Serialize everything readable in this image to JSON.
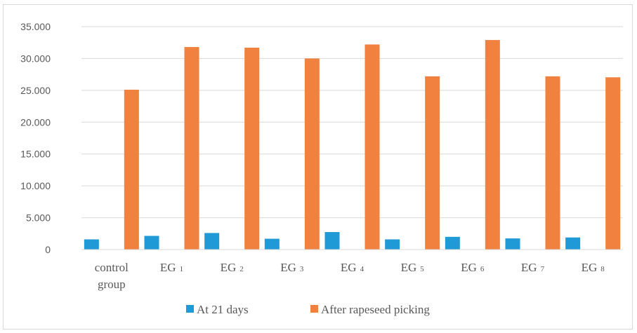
{
  "chart_data": {
    "type": "bar",
    "title": "",
    "xlabel": "",
    "ylabel": "",
    "ylim": [
      0,
      35000
    ],
    "yticks": [
      0,
      5000,
      10000,
      15000,
      20000,
      25000,
      30000,
      35000
    ],
    "ytick_labels": [
      "0",
      "5.000",
      "10.000",
      "15.000",
      "20.000",
      "25.000",
      "30.000",
      "35.000"
    ],
    "grid": true,
    "legend_position": "bottom",
    "categories": [
      {
        "main": "control",
        "sub": "",
        "line2": "group"
      },
      {
        "main": "EG",
        "sub": "1",
        "line2": ""
      },
      {
        "main": "EG",
        "sub": "2",
        "line2": ""
      },
      {
        "main": "EG",
        "sub": "3",
        "line2": ""
      },
      {
        "main": "EG",
        "sub": "4",
        "line2": ""
      },
      {
        "main": "EG",
        "sub": "5",
        "line2": ""
      },
      {
        "main": "EG",
        "sub": "6",
        "line2": ""
      },
      {
        "main": "EG",
        "sub": "7",
        "line2": ""
      },
      {
        "main": "EG",
        "sub": "8",
        "line2": ""
      }
    ],
    "series": [
      {
        "name": "At 21 days",
        "color": "#1f9ad6",
        "values": [
          1600,
          2150,
          2600,
          1700,
          2750,
          1600,
          2000,
          1750,
          1900
        ]
      },
      {
        "name": "After rapeseed picking",
        "color": "#f0813f",
        "values": [
          25100,
          31800,
          31700,
          30000,
          32200,
          27200,
          32900,
          27200,
          27050
        ]
      }
    ]
  }
}
